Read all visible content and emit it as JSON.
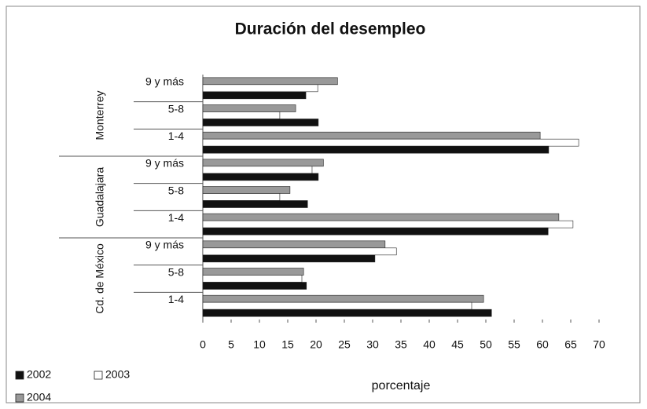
{
  "chart_data": {
    "type": "bar",
    "orientation": "horizontal",
    "title": "Duración del desempleo",
    "xlabel": "porcentaje",
    "groups": [
      {
        "name": "Monterrey",
        "categories": [
          "9 y más",
          "5-8",
          "1-4"
        ]
      },
      {
        "name": "Guadalajara",
        "categories": [
          "9 y más",
          "5-8",
          "1-4"
        ]
      },
      {
        "name": "Cd. de México",
        "categories": [
          "9 y más",
          "5-8",
          "1-4"
        ]
      }
    ],
    "series": [
      {
        "name": "2002",
        "color": "#111111",
        "values": [
          18.2,
          20.4,
          61.1,
          20.4,
          18.5,
          61.0,
          30.4,
          18.3,
          51.0
        ]
      },
      {
        "name": "2003",
        "color": "#ffffff",
        "values": [
          20.3,
          13.6,
          66.4,
          19.3,
          13.6,
          65.4,
          34.2,
          17.5,
          47.5
        ]
      },
      {
        "name": "2004",
        "color": "#999999",
        "values": [
          23.8,
          16.4,
          59.6,
          21.3,
          15.4,
          62.9,
          32.2,
          17.8,
          49.6
        ]
      }
    ],
    "xlim": [
      0,
      70
    ],
    "xticks": [
      0,
      5,
      10,
      15,
      20,
      25,
      30,
      35,
      40,
      45,
      50,
      55,
      60,
      65,
      70
    ],
    "grid": false,
    "legend": "bottom-left"
  }
}
